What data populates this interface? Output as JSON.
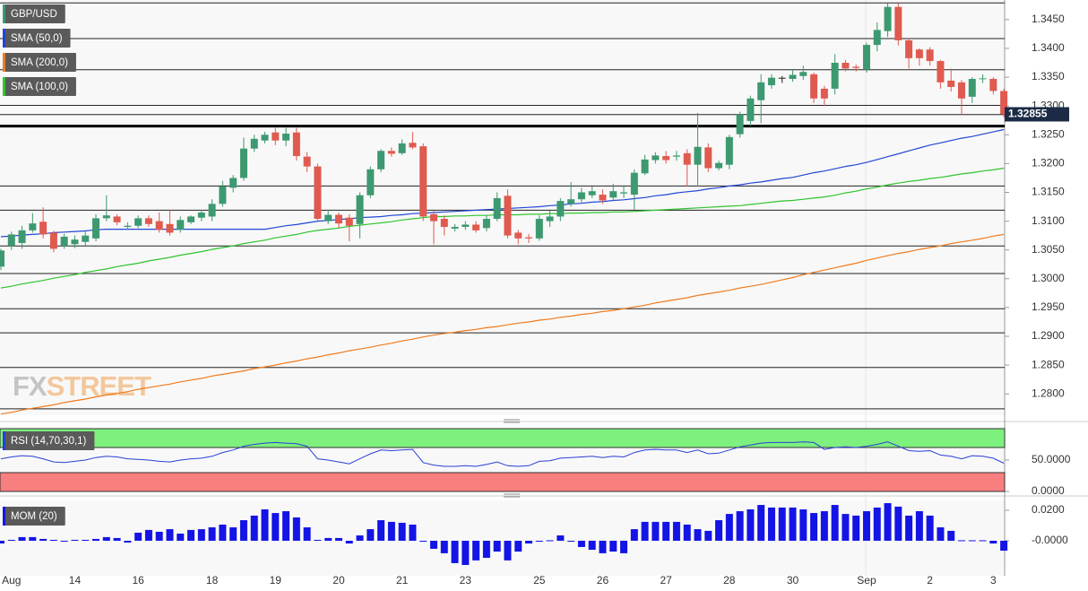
{
  "chart_data": [
    {
      "type": "candlestick",
      "name": "GBP/USD",
      "up_color": "#3d9970",
      "down_color": "#e05a4f",
      "categories": [
        null,
        "Aug",
        null,
        null,
        null,
        null,
        null,
        "14",
        null,
        null,
        null,
        null,
        null,
        "16",
        null,
        null,
        null,
        null,
        null,
        null,
        "18",
        null,
        null,
        null,
        null,
        null,
        "19",
        null,
        null,
        null,
        null,
        null,
        "20",
        null,
        null,
        null,
        null,
        null,
        "21",
        null,
        null,
        null,
        null,
        null,
        "23",
        null,
        null,
        null,
        null,
        null,
        null,
        "25",
        null,
        null,
        null,
        null,
        null,
        "26",
        null,
        null,
        null,
        null,
        null,
        "27",
        null,
        null,
        null,
        null,
        null,
        "28",
        null,
        null,
        null,
        null,
        null,
        "30",
        null,
        null,
        null,
        null,
        null,
        null,
        "Sep",
        null,
        null,
        null,
        null,
        null,
        "2",
        null,
        null,
        null,
        null,
        null,
        "3",
        null
      ],
      "open": [
        1.3021,
        1.3057,
        1.3062,
        1.3084,
        1.3099,
        1.308,
        1.3057,
        1.306,
        1.3064,
        1.307,
        1.3105,
        1.3108,
        1.309,
        1.3092,
        1.3105,
        1.31,
        1.3095,
        1.3085,
        1.3098,
        1.3106,
        1.3108,
        1.313,
        1.3158,
        1.3175,
        1.3226,
        1.324,
        1.3254,
        1.324,
        1.3254,
        1.3212,
        1.3195,
        1.31,
        1.3111,
        1.3106,
        1.3095,
        1.3145,
        1.319,
        1.3222,
        1.3218,
        1.3236,
        1.323,
        1.3112,
        1.3104,
        1.3087,
        1.309,
        1.3094,
        1.3088,
        1.3104,
        1.3144,
        1.308,
        1.3072,
        1.307,
        1.31,
        1.3108,
        1.313,
        1.3138,
        1.3145,
        1.3146,
        1.3141,
        1.3148,
        1.3146,
        1.3183,
        1.3206,
        1.3213,
        1.3212,
        1.3218,
        1.3198,
        1.3228,
        1.3192,
        1.3198,
        1.3251,
        1.3274,
        1.331,
        1.3336,
        1.3349,
        1.3347,
        1.3352,
        1.3355,
        1.333,
        1.333,
        1.3375,
        1.3368,
        1.3363,
        1.3406,
        1.343,
        1.3472,
        1.3414,
        1.3398,
        1.3398,
        1.3378,
        1.3344,
        1.3341,
        1.3316,
        1.3347,
        1.3347,
        1.3326
      ],
      "high": [
        1.3052,
        1.3082,
        1.3092,
        1.3114,
        1.3124,
        1.3083,
        1.3078,
        1.3075,
        1.3082,
        1.3112,
        1.3145,
        1.3112,
        1.3098,
        1.311,
        1.311,
        1.3115,
        1.312,
        1.3108,
        1.311,
        1.312,
        1.3138,
        1.317,
        1.318,
        1.3245,
        1.325,
        1.3255,
        1.3262,
        1.3262,
        1.3262,
        1.322,
        1.32,
        1.312,
        1.3115,
        1.3112,
        1.315,
        1.3195,
        1.3225,
        1.3228,
        1.3242,
        1.3255,
        1.3235,
        1.3118,
        1.311,
        1.3095,
        1.31,
        1.31,
        1.311,
        1.315,
        1.3155,
        1.3085,
        1.3078,
        1.311,
        1.3118,
        1.314,
        1.3168,
        1.3158,
        1.316,
        1.3155,
        1.3165,
        1.316,
        1.319,
        1.3215,
        1.322,
        1.3222,
        1.3222,
        1.3225,
        1.3288,
        1.3235,
        1.3205,
        1.325,
        1.329,
        1.3318,
        1.3355,
        1.3355,
        1.3352,
        1.3362,
        1.337,
        1.3358,
        1.3335,
        1.339,
        1.338,
        1.3372,
        1.341,
        1.3445,
        1.3478,
        1.3478,
        1.3418,
        1.34,
        1.3402,
        1.338,
        1.3365,
        1.3345,
        1.335,
        1.3355,
        1.335,
        1.333
      ],
      "low": [
        1.3015,
        1.305,
        1.3052,
        1.308,
        1.307,
        1.3046,
        1.3052,
        1.3053,
        1.3058,
        1.3065,
        1.31,
        1.3093,
        1.3085,
        1.3088,
        1.309,
        1.308,
        1.3075,
        1.308,
        1.3095,
        1.31,
        1.31,
        1.3125,
        1.315,
        1.317,
        1.322,
        1.3235,
        1.3232,
        1.323,
        1.3205,
        1.3185,
        1.31,
        1.3095,
        1.3088,
        1.3065,
        1.307,
        1.314,
        1.3185,
        1.3212,
        1.3215,
        1.3225,
        1.31,
        1.306,
        1.3075,
        1.3082,
        1.3085,
        1.308,
        1.3082,
        1.31,
        1.307,
        1.306,
        1.3062,
        1.3066,
        1.309,
        1.31,
        1.3125,
        1.313,
        1.314,
        1.313,
        1.3135,
        1.314,
        1.312,
        1.318,
        1.32,
        1.32,
        1.3205,
        1.316,
        1.316,
        1.3185,
        1.3188,
        1.319,
        1.3245,
        1.3265,
        1.327,
        1.333,
        1.334,
        1.3342,
        1.3345,
        1.3305,
        1.33,
        1.332,
        1.336,
        1.336,
        1.3358,
        1.3395,
        1.342,
        1.3405,
        1.3365,
        1.337,
        1.337,
        1.333,
        1.3325,
        1.3285,
        1.3305,
        1.334,
        1.332,
        1.328
      ],
      "close": [
        1.3049,
        1.3077,
        1.3084,
        1.3096,
        1.3077,
        1.3052,
        1.3073,
        1.3068,
        1.3075,
        1.3105,
        1.311,
        1.3098,
        1.3092,
        1.3105,
        1.3095,
        1.3085,
        1.308,
        1.3102,
        1.3108,
        1.3115,
        1.313,
        1.316,
        1.3175,
        1.3226,
        1.3243,
        1.325,
        1.324,
        1.3252,
        1.3213,
        1.3195,
        1.3104,
        1.3111,
        1.3096,
        1.3092,
        1.3145,
        1.319,
        1.3222,
        1.3217,
        1.3235,
        1.3228,
        1.3108,
        1.31,
        1.309,
        1.309,
        1.3094,
        1.3084,
        1.3104,
        1.314,
        1.3075,
        1.307,
        1.307,
        1.3104,
        1.3108,
        1.3135,
        1.3138,
        1.315,
        1.3152,
        1.3136,
        1.3152,
        1.315,
        1.3184,
        1.3207,
        1.3214,
        1.3206,
        1.3214,
        1.3198,
        1.3229,
        1.3192,
        1.3201,
        1.3246,
        1.3285,
        1.3313,
        1.3341,
        1.3349,
        1.3349,
        1.3354,
        1.3359,
        1.3313,
        1.3313,
        1.3375,
        1.3365,
        1.3366,
        1.3406,
        1.3432,
        1.3472,
        1.3414,
        1.3383,
        1.3383,
        1.3378,
        1.3341,
        1.3333,
        1.3313,
        1.3347,
        1.3348,
        1.3326,
        1.32855
      ],
      "series": [
        {
          "name": "SMA (50,0)",
          "color": "#2146d6",
          "values": [
            1.3073,
            1.3074,
            1.3076,
            1.3077,
            1.3078,
            1.308,
            1.3081,
            1.3082,
            1.3083,
            1.3085,
            1.3086,
            1.3086,
            1.3086,
            1.3086,
            1.3086,
            1.3086,
            1.3086,
            1.3086,
            1.3086,
            1.3086,
            1.3086,
            1.3086,
            1.3086,
            1.3086,
            1.3086,
            1.3086,
            1.3089,
            1.3092,
            1.3094,
            1.3097,
            1.31,
            1.3101,
            1.3103,
            1.3104,
            1.3106,
            1.3107,
            1.3108,
            1.311,
            1.3111,
            1.3113,
            1.3114,
            1.3115,
            1.3116,
            1.3117,
            1.3118,
            1.3119,
            1.312,
            1.3121,
            1.3122,
            1.3123,
            1.3124,
            1.3125,
            1.3127,
            1.3128,
            1.313,
            1.3131,
            1.3133,
            1.3134,
            1.3136,
            1.3137,
            1.3139,
            1.3141,
            1.3144,
            1.3146,
            1.3149,
            1.3151,
            1.3153,
            1.3156,
            1.3158,
            1.3161,
            1.3163,
            1.3166,
            1.3168,
            1.3171,
            1.3174,
            1.3176,
            1.318,
            1.3184,
            1.3187,
            1.3191,
            1.3195,
            1.3198,
            1.3202,
            1.3207,
            1.3212,
            1.3217,
            1.3222,
            1.3227,
            1.3232,
            1.3236,
            1.324,
            1.3244,
            1.3247,
            1.3251,
            1.3255,
            1.3259
          ]
        },
        {
          "name": "SMA (200,0)",
          "color": "#f07b1e",
          "values": [
            1.2765,
            1.2768,
            1.2772,
            1.2775,
            1.2778,
            1.2781,
            1.2785,
            1.2788,
            1.2791,
            1.2795,
            1.2798,
            1.2801,
            1.2804,
            1.2808,
            1.2811,
            1.2814,
            1.2817,
            1.2821,
            1.2824,
            1.2827,
            1.2831,
            1.2834,
            1.2837,
            1.284,
            1.2844,
            1.2847,
            1.285,
            1.2854,
            1.2857,
            1.2861,
            1.2864,
            1.2868,
            1.2871,
            1.2875,
            1.2878,
            1.2881,
            1.2885,
            1.2888,
            1.2892,
            1.2895,
            1.2899,
            1.2902,
            1.2905,
            1.2907,
            1.291,
            1.2912,
            1.2915,
            1.2917,
            1.292,
            1.2923,
            1.2925,
            1.2928,
            1.293,
            1.2933,
            1.2935,
            1.2938,
            1.294,
            1.2943,
            1.2945,
            1.2948,
            1.2951,
            1.2954,
            1.2958,
            1.2961,
            1.2964,
            1.2967,
            1.2971,
            1.2974,
            1.2977,
            1.298,
            1.2984,
            1.2987,
            1.299,
            1.2994,
            1.2998,
            1.3002,
            1.3007,
            1.3011,
            1.3015,
            1.3019,
            1.3023,
            1.3027,
            1.3032,
            1.3036,
            1.304,
            1.3044,
            1.3047,
            1.3051,
            1.3054,
            1.3057,
            1.3061,
            1.3064,
            1.3067,
            1.307,
            1.3074,
            1.3077
          ]
        },
        {
          "name": "SMA (100,0)",
          "color": "#2ec52e",
          "values": [
            1.2984,
            1.2987,
            1.2991,
            1.2994,
            1.2997,
            1.3001,
            1.3004,
            1.3007,
            1.3011,
            1.3014,
            1.3017,
            1.3021,
            1.3024,
            1.3027,
            1.3031,
            1.3034,
            1.3037,
            1.3041,
            1.3044,
            1.3047,
            1.3051,
            1.3054,
            1.3057,
            1.3061,
            1.3064,
            1.3067,
            1.3071,
            1.3074,
            1.3077,
            1.3081,
            1.3084,
            1.3086,
            1.3088,
            1.3091,
            1.3093,
            1.3095,
            1.3097,
            1.3099,
            1.3102,
            1.3104,
            1.3106,
            1.3108,
            1.3108,
            1.3109,
            1.3109,
            1.311,
            1.311,
            1.3111,
            1.3111,
            1.3111,
            1.3112,
            1.3112,
            1.3113,
            1.3113,
            1.3114,
            1.3114,
            1.3115,
            1.3115,
            1.3116,
            1.3116,
            1.3117,
            1.3118,
            1.3119,
            1.312,
            1.3121,
            1.3122,
            1.3123,
            1.3124,
            1.3125,
            1.3126,
            1.3127,
            1.3129,
            1.3131,
            1.3133,
            1.3135,
            1.3136,
            1.3138,
            1.314,
            1.3142,
            1.3145,
            1.3149,
            1.3152,
            1.3156,
            1.3159,
            1.3163,
            1.3166,
            1.3169,
            1.3171,
            1.3174,
            1.3176,
            1.3179,
            1.3182,
            1.3184,
            1.3187,
            1.3189,
            1.3192
          ]
        }
      ],
      "ylim": [
        1.2763,
        1.3484
      ],
      "yticks": [
        {
          "value": 1.345,
          "label": "1.3450"
        },
        {
          "value": 1.34,
          "label": "1.3400"
        },
        {
          "value": 1.335,
          "label": "1.3350"
        },
        {
          "value": 1.33,
          "label": "1.3300"
        },
        {
          "value": 1.325,
          "label": "1.3250"
        },
        {
          "value": 1.32,
          "label": "1.3200"
        },
        {
          "value": 1.315,
          "label": "1.3150"
        },
        {
          "value": 1.31,
          "label": "1.3100"
        },
        {
          "value": 1.305,
          "label": "1.3050"
        },
        {
          "value": 1.3,
          "label": "1.3000"
        },
        {
          "value": 1.295,
          "label": "1.2950"
        },
        {
          "value": 1.29,
          "label": "1.2900"
        },
        {
          "value": 1.285,
          "label": "1.2850"
        },
        {
          "value": 1.28,
          "label": "1.2800"
        }
      ],
      "levels": [
        1.3479,
        1.3417,
        1.3363,
        1.3301,
        1.3285,
        1.3161,
        1.3119,
        1.3057,
        1.3009,
        1.2948,
        1.2906,
        1.2846,
        1.2774
      ],
      "major_level": 1.3265,
      "last_price": 1.32855,
      "watermark": [
        "FX",
        "STREET"
      ]
    },
    {
      "type": "line",
      "name": "RSI (14,70,30,1)",
      "color": "#2a3fd6",
      "values": [
        52,
        55,
        57,
        56,
        52,
        47,
        46,
        48,
        50,
        54,
        56,
        55,
        52,
        51,
        50,
        48,
        47,
        50,
        52,
        53,
        56,
        62,
        66,
        72,
        75,
        77,
        78,
        77,
        76,
        72,
        52,
        50,
        47,
        44,
        52,
        60,
        66,
        65,
        66,
        67,
        46,
        42,
        40,
        40,
        41,
        40,
        43,
        47,
        41,
        40,
        41,
        48,
        49,
        53,
        54,
        55,
        56,
        54,
        56,
        55,
        62,
        66,
        67,
        66,
        66,
        62,
        66,
        60,
        61,
        66,
        71,
        74,
        77,
        78,
        78,
        78,
        79,
        78,
        67,
        70,
        71,
        70,
        72,
        75,
        79,
        72,
        65,
        64,
        65,
        58,
        56,
        52,
        57,
        56,
        53,
        45
      ],
      "ylim": [
        0,
        100
      ],
      "yticks": [
        {
          "value": 50,
          "label": "50.0000"
        },
        {
          "value": 0,
          "label": "0.0000"
        }
      ],
      "overbought_level": 70,
      "oversold_level": 30,
      "overbought_color": "#7df07d",
      "oversold_color": "#f87f7f"
    },
    {
      "type": "bar",
      "name": "MOM (20)",
      "color": "#1414e6",
      "values": [
        -0.0018,
        0.0006,
        0.0024,
        0.0024,
        0.0012,
        0.0006,
        -0.0006,
        0.0006,
        0.0006,
        0.0012,
        0.0024,
        0.0018,
        -0.0012,
        0.0053,
        0.0071,
        0.0059,
        0.0076,
        0.0047,
        0.0071,
        0.0076,
        0.0088,
        0.0106,
        0.0088,
        0.0135,
        0.0165,
        0.0206,
        0.0182,
        0.0194,
        0.0153,
        0.0088,
        0.0006,
        0.0018,
        0.0018,
        -0.0018,
        0.0035,
        0.0076,
        0.0135,
        0.0124,
        0.0118,
        0.0106,
        -0.0006,
        -0.0053,
        -0.0082,
        -0.0147,
        -0.0159,
        -0.0129,
        -0.0112,
        -0.0071,
        -0.0129,
        -0.0071,
        -0.0018,
        -0.0006,
        0.0003,
        0.0035,
        -0.0006,
        -0.0041,
        -0.0059,
        -0.0082,
        -0.0071,
        -0.0082,
        0.0076,
        0.0124,
        0.0124,
        0.0124,
        0.0124,
        0.0106,
        0.0076,
        0.0065,
        0.0135,
        0.0176,
        0.0194,
        0.0206,
        0.0235,
        0.0218,
        0.0218,
        0.0218,
        0.0206,
        0.0182,
        0.0194,
        0.0235,
        0.0176,
        0.0165,
        0.0194,
        0.0218,
        0.0247,
        0.0224,
        0.0165,
        0.0194,
        0.0165,
        0.0088,
        0.0065,
        0.0003,
        0.0003,
        0.0003,
        -0.0018,
        -0.0065
      ],
      "ylim": [
        -0.0218,
        0.0253
      ],
      "yticks": [
        {
          "value": 0.02,
          "label": "0.0200"
        },
        {
          "value": 0,
          "label": "-0.0000"
        }
      ]
    }
  ]
}
